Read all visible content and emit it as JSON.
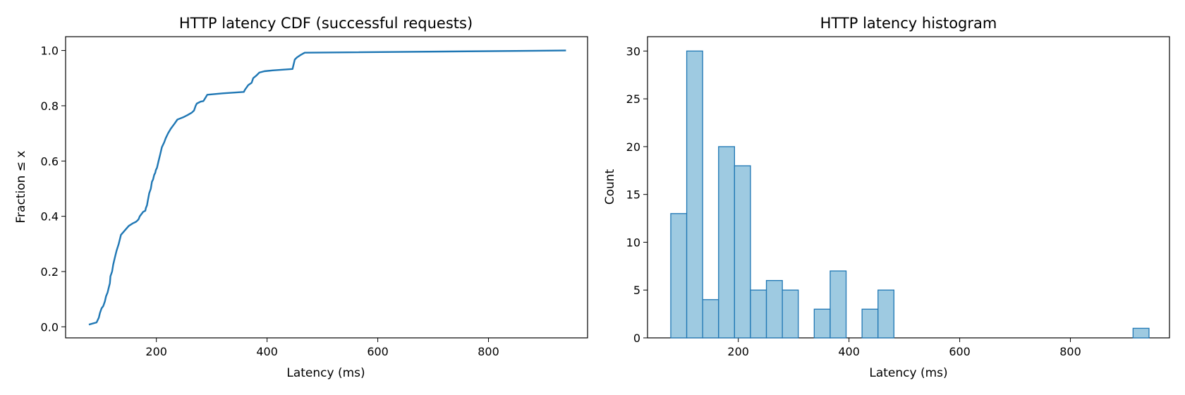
{
  "chart_data": [
    {
      "type": "line",
      "title": "HTTP latency CDF (successful requests)",
      "xlabel": "Latency (ms)",
      "ylabel": "Fraction ≤ x",
      "xlim": [
        36,
        979
      ],
      "ylim": [
        -0.04,
        1.05
      ],
      "xticks": [
        200,
        400,
        600,
        800
      ],
      "yticks": [
        0.0,
        0.2,
        0.4,
        0.6,
        0.8,
        1.0
      ],
      "xtick_labels": [
        "200",
        "400",
        "600",
        "800"
      ],
      "ytick_labels": [
        "0.0",
        "0.2",
        "0.4",
        "0.6",
        "0.8",
        "1.0"
      ],
      "grid": false,
      "color": "#1f77b4",
      "series": [
        {
          "x": [
            78,
            92,
            96,
            98,
            101,
            104,
            107,
            109,
            112,
            114,
            116,
            117,
            120,
            122,
            125,
            128,
            132,
            136,
            150,
            158,
            163,
            166,
            168,
            170,
            176,
            178,
            180,
            181,
            183,
            184,
            187,
            190,
            192,
            194,
            196,
            198,
            199,
            201,
            204,
            207,
            210,
            214,
            217,
            221,
            226,
            232,
            238,
            248,
            256,
            264,
            268,
            271,
            273,
            275,
            280,
            285,
            289,
            292,
            320,
            358,
            360,
            366,
            372,
            375,
            380,
            386,
            395,
            410,
            446,
            448,
            450,
            454,
            460,
            468,
            940
          ],
          "y": [
            0.008,
            0.016,
            0.033,
            0.05,
            0.067,
            0.075,
            0.092,
            0.11,
            0.125,
            0.142,
            0.158,
            0.183,
            0.2,
            0.225,
            0.25,
            0.275,
            0.3,
            0.333,
            0.365,
            0.375,
            0.38,
            0.385,
            0.39,
            0.4,
            0.416,
            0.418,
            0.42,
            0.43,
            0.44,
            0.45,
            0.483,
            0.5,
            0.525,
            0.533,
            0.55,
            0.557,
            0.567,
            0.575,
            0.6,
            0.625,
            0.65,
            0.667,
            0.683,
            0.7,
            0.717,
            0.733,
            0.75,
            0.758,
            0.766,
            0.775,
            0.783,
            0.8,
            0.808,
            0.81,
            0.815,
            0.817,
            0.83,
            0.84,
            0.845,
            0.85,
            0.858,
            0.875,
            0.883,
            0.9,
            0.908,
            0.92,
            0.925,
            0.928,
            0.933,
            0.95,
            0.967,
            0.975,
            0.983,
            0.992,
            1.0
          ]
        }
      ]
    },
    {
      "type": "bar",
      "title": "HTTP latency histogram",
      "xlabel": "Latency (ms)",
      "ylabel": "Count",
      "xlim": [
        36,
        979
      ],
      "ylim": [
        0,
        31.5
      ],
      "xticks": [
        200,
        400,
        600,
        800
      ],
      "yticks": [
        0,
        5,
        10,
        15,
        20,
        25,
        30
      ],
      "xtick_labels": [
        "200",
        "400",
        "600",
        "800"
      ],
      "ytick_labels": [
        "0",
        "5",
        "10",
        "15",
        "20",
        "25",
        "30"
      ],
      "grid": false,
      "bar_face_color": "#9ecae1",
      "bar_edge_color": "#1f77b4",
      "bin_start": 78,
      "bin_width": 28.8,
      "counts": [
        13,
        30,
        4,
        20,
        18,
        5,
        6,
        5,
        0,
        3,
        7,
        0,
        3,
        5,
        0,
        0,
        0,
        0,
        0,
        0,
        0,
        0,
        0,
        0,
        0,
        0,
        0,
        0,
        0,
        1
      ]
    }
  ]
}
